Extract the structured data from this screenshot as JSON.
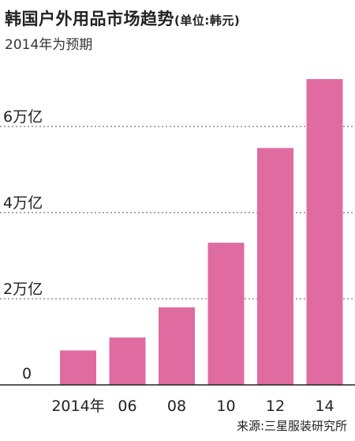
{
  "chart_data": {
    "type": "bar",
    "title": "韩国户外用品市场趋势",
    "unit_note": "(单位:韩元)",
    "subtitle": "2014年为预期",
    "categories": [
      "2014年",
      "06",
      "08",
      "10",
      "12",
      "14"
    ],
    "values": [
      0.8,
      1.1,
      1.8,
      3.3,
      5.5,
      7.1
    ],
    "yticks": [
      {
        "value": 0,
        "label": "0"
      },
      {
        "value": 2,
        "label": "2万亿"
      },
      {
        "value": 4,
        "label": "4万亿"
      },
      {
        "value": 6,
        "label": "6万亿"
      }
    ],
    "ylim": [
      0,
      7.5
    ],
    "xlabel": "",
    "ylabel": "",
    "grid": "dotted horizontal",
    "bar_color": "#df6ba1",
    "source": "来源:三星服装研究所"
  }
}
